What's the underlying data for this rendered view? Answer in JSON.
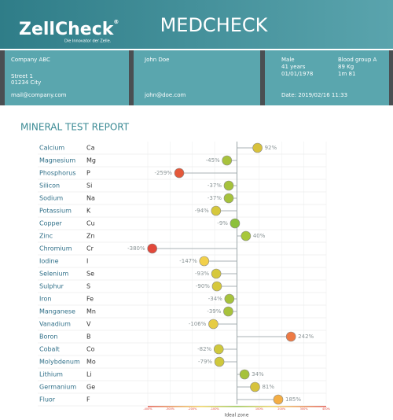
{
  "header": {
    "logo_left": "Zell",
    "logo_right": "Check",
    "logo_mark": "®",
    "tagline": "Die Innovator der Zelle.",
    "title": "MEDCHECK"
  },
  "info": {
    "company": [
      "Company ABC",
      "Street 1",
      "01234 City",
      "mail@company.com"
    ],
    "person": [
      "John Doe",
      "john@doe.com"
    ],
    "stats_left": [
      "Male",
      "41 years",
      "01/01/1978"
    ],
    "stats_right": [
      "Blood group A",
      "89 Kg",
      "1m 81"
    ],
    "date": "Date: 2019/02/16 11:33"
  },
  "chart_data": {
    "type": "lollipop",
    "title": "MINERAL TEST REPORT",
    "categories": [
      "Calcium",
      "Magnesium",
      "Phosphorus",
      "Silicon",
      "Sodium",
      "Potassium",
      "Copper",
      "Zinc",
      "Chromium",
      "Iodine",
      "Selenium",
      "Sulphur",
      "Iron",
      "Manganese",
      "Vanadium",
      "Boron",
      "Cobalt",
      "Molybdenum",
      "Lithium",
      "Germanium",
      "Fluor"
    ],
    "symbols": [
      "Ca",
      "Mg",
      "P",
      "Si",
      "Na",
      "K",
      "Cu",
      "Zn",
      "Cr",
      "I",
      "Se",
      "S",
      "Fe",
      "Mn",
      "V",
      "B",
      "Co",
      "Mo",
      "Li",
      "Ge",
      "F"
    ],
    "values": [
      92,
      -45,
      -259,
      -37,
      -37,
      -94,
      -9,
      40,
      -380,
      -147,
      -93,
      -90,
      -34,
      -39,
      -106,
      242,
      -82,
      -79,
      34,
      81,
      185
    ],
    "value_labels": [
      "92%",
      "-45%",
      "-259%",
      "-37%",
      "-37%",
      "-94%",
      "-9%",
      "40%",
      "-380%",
      "-147%",
      "-93%",
      "-90%",
      "-34%",
      "-39%",
      "-106%",
      "242%",
      "-82%",
      "-79%",
      "34%",
      "81%",
      "185%"
    ],
    "colors": [
      "#d8c23c",
      "#a8c23c",
      "#e4583a",
      "#a6c23c",
      "#a6c23c",
      "#d6c83c",
      "#8cc03c",
      "#a8c83c",
      "#e2483a",
      "#f2d04a",
      "#d6c83c",
      "#d6c83c",
      "#a6c23c",
      "#a8c23c",
      "#e6cc44",
      "#ee7a44",
      "#cfc83c",
      "#cfc83c",
      "#a6c23c",
      "#d6c23c",
      "#f4ae44"
    ],
    "xlim": [
      -400,
      400
    ],
    "xticks": [
      {
        "value": -400,
        "label": "-400%"
      },
      {
        "value": -300,
        "label": "-300%"
      },
      {
        "value": -200,
        "label": "-200%"
      },
      {
        "value": -100,
        "label": "-100%"
      },
      {
        "value": 100,
        "label": "100%"
      },
      {
        "value": 200,
        "label": "200%"
      },
      {
        "value": 300,
        "label": "300%"
      },
      {
        "value": 400,
        "label": "400%"
      }
    ],
    "xlabel": "Ideal zone"
  }
}
